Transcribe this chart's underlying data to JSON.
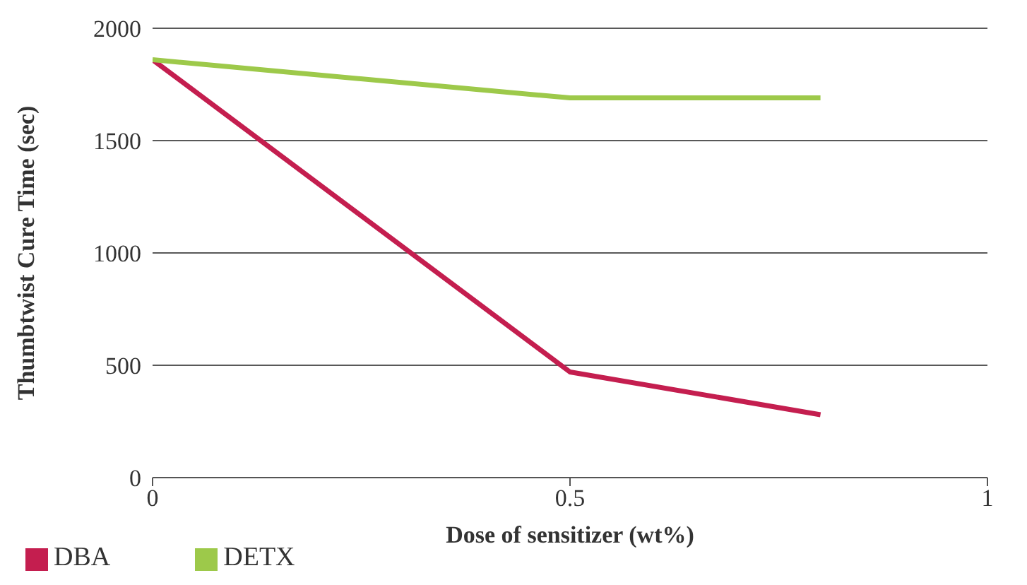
{
  "chart_data": {
    "type": "line",
    "xlabel": "Dose of sensitizer (wt%)",
    "ylabel": "Thumbtwist Cure Time (sec)",
    "x": [
      0,
      0.5,
      0.8
    ],
    "series": [
      {
        "name": "DBA",
        "color": "#c41e4f",
        "values": [
          1860,
          470,
          280
        ]
      },
      {
        "name": "DETX",
        "color": "#9dc94a",
        "values": [
          1860,
          1690,
          1690
        ]
      }
    ],
    "xlim": [
      0,
      1
    ],
    "xticks": [
      0,
      0.5,
      1
    ],
    "ylim": [
      0,
      2000
    ],
    "yticks": [
      0,
      500,
      1000,
      1500,
      2000
    ],
    "grid": "y",
    "legend": "bottom left",
    "marker": "none",
    "line_style": "solid"
  }
}
